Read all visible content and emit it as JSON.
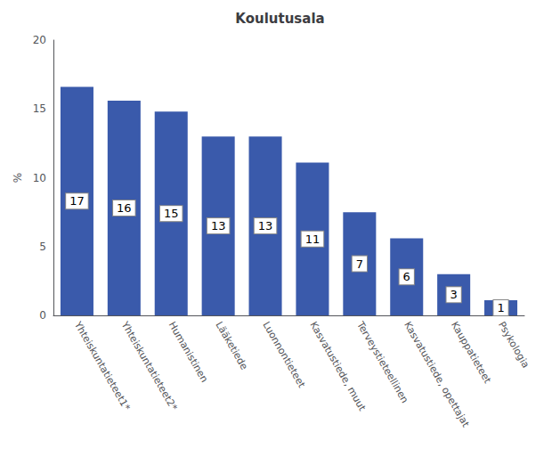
{
  "chart_data": {
    "type": "bar",
    "title": "Koulutusala",
    "ylabel": "%",
    "categories": [
      "Yhteiskuntatieteet1*",
      "Yhteiskuntatieteet2*",
      "Humanistinen",
      "Lääketiede",
      "Luonnontieteet",
      "Kasvatustiede, muut",
      "Terveystieteellinen",
      "Kasvatustiede, opettajat",
      "Kauppatieteet",
      "Psykologia"
    ],
    "values": [
      16.6,
      15.6,
      14.8,
      13.0,
      13.0,
      11.1,
      7.5,
      5.6,
      3.0,
      1.1
    ],
    "value_labels": [
      "17",
      "16",
      "15",
      "13",
      "13",
      "11",
      "7",
      "6",
      "3",
      "1"
    ],
    "color": "#3a5aab",
    "ylim": [
      0,
      20
    ],
    "yticks": [
      0,
      5,
      10,
      15,
      20
    ],
    "grid": false
  }
}
